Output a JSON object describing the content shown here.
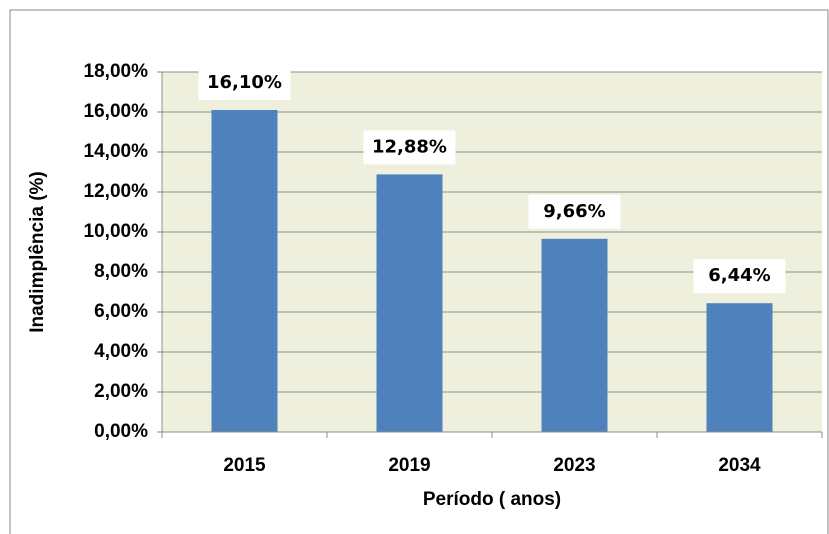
{
  "chart_data": {
    "type": "bar",
    "x_label": "Período ( anos)",
    "y_label": "Inadimplência (%)",
    "categories": [
      "2015",
      "2019",
      "2023",
      "2034"
    ],
    "values": [
      16.1,
      12.88,
      9.66,
      6.44
    ],
    "value_labels": [
      "16,10%",
      "12,88%",
      "9,66%",
      "6,44%"
    ],
    "color": "#4f81bd",
    "ylim": [
      0,
      18
    ],
    "yticks": [
      {
        "value": 0,
        "label": "0,00%"
      },
      {
        "value": 2,
        "label": "2,00%"
      },
      {
        "value": 4,
        "label": "4,00%"
      },
      {
        "value": 6,
        "label": "6,00%"
      },
      {
        "value": 8,
        "label": "8,00%"
      },
      {
        "value": 10,
        "label": "10,00%"
      },
      {
        "value": 12,
        "label": "12,00%"
      },
      {
        "value": 14,
        "label": "14,00%"
      },
      {
        "value": 16,
        "label": "16,00%"
      },
      {
        "value": 18,
        "label": "18,00%"
      }
    ],
    "grid": true
  }
}
